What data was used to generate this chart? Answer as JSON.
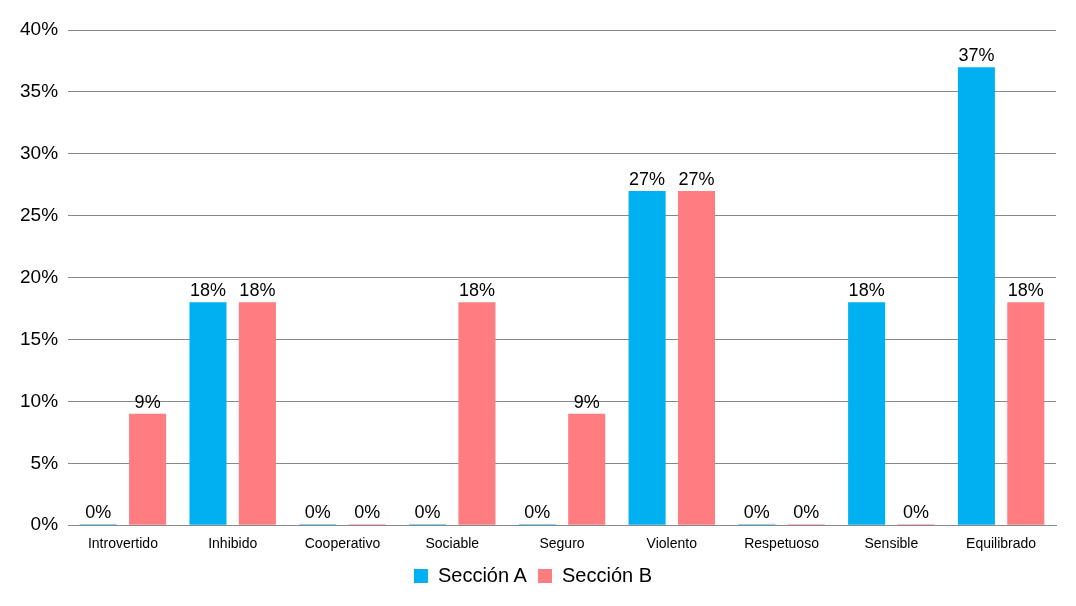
{
  "chart_data": {
    "type": "bar",
    "categories": [
      "Introvertido",
      "Inhibido",
      "Cooperativo",
      "Sociable",
      "Seguro",
      "Violento",
      "Respetuoso",
      "Sensible",
      "Equilibrado"
    ],
    "series": [
      {
        "name": "Sección A",
        "color": "#00b0f0",
        "values": [
          0,
          18,
          0,
          0,
          0,
          27,
          0,
          18,
          37
        ],
        "value_labels": [
          "0%",
          "18%",
          "0%",
          "0%",
          "0%",
          "27%",
          "0%",
          "18%",
          "37%"
        ]
      },
      {
        "name": "Sección B",
        "color": "#ff7c80",
        "values": [
          9,
          18,
          0,
          18,
          9,
          27,
          0,
          0,
          18
        ],
        "value_labels": [
          "9%",
          "18%",
          "0%",
          "18%",
          "9%",
          "27%",
          "0%",
          "0%",
          "18%"
        ]
      }
    ],
    "ylim": [
      0,
      40
    ],
    "yticks": [
      {
        "value": 0,
        "label": "0%"
      },
      {
        "value": 5,
        "label": "5%"
      },
      {
        "value": 10,
        "label": "10%"
      },
      {
        "value": 15,
        "label": "15%"
      },
      {
        "value": 20,
        "label": "20%"
      },
      {
        "value": 25,
        "label": "25%"
      },
      {
        "value": 30,
        "label": "30%"
      },
      {
        "value": 35,
        "label": "35%"
      },
      {
        "value": 40,
        "label": "40%"
      }
    ],
    "grid": "y",
    "legend": "bottom"
  }
}
